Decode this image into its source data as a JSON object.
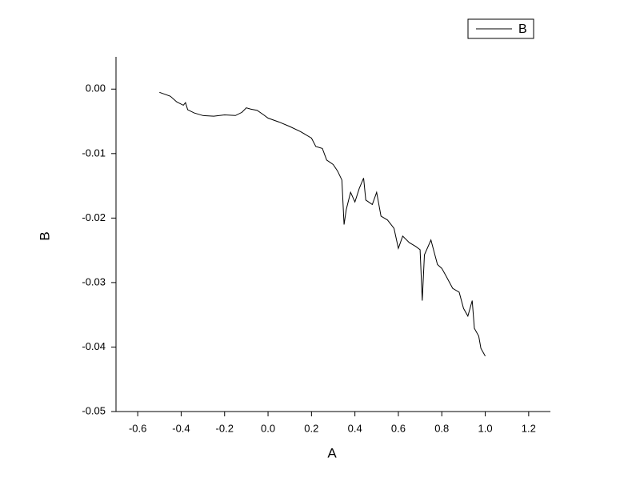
{
  "chart_data": {
    "type": "line",
    "x_label": "A",
    "y_label": "B",
    "x": [
      -0.5,
      -0.45,
      -0.42,
      -0.39,
      -0.38,
      -0.37,
      -0.34,
      -0.3,
      -0.25,
      -0.2,
      -0.15,
      -0.12,
      -0.1,
      -0.08,
      -0.05,
      -0.02,
      0.0,
      0.05,
      0.1,
      0.15,
      0.2,
      0.22,
      0.25,
      0.27,
      0.3,
      0.32,
      0.34,
      0.35,
      0.36,
      0.38,
      0.4,
      0.42,
      0.44,
      0.45,
      0.48,
      0.5,
      0.52,
      0.55,
      0.58,
      0.6,
      0.62,
      0.65,
      0.68,
      0.7,
      0.71,
      0.72,
      0.75,
      0.78,
      0.8,
      0.82,
      0.85,
      0.88,
      0.9,
      0.92,
      0.94,
      0.95,
      0.97,
      0.98,
      1.0
    ],
    "series": [
      {
        "name": "B",
        "color": "#000000",
        "values": [
          -0.0005,
          -0.0011,
          -0.002,
          -0.0025,
          -0.0021,
          -0.0032,
          -0.0037,
          -0.0041,
          -0.0042,
          -0.004,
          -0.0041,
          -0.0036,
          -0.0029,
          -0.0031,
          -0.0033,
          -0.004,
          -0.0045,
          -0.0051,
          -0.0058,
          -0.0066,
          -0.0076,
          -0.0089,
          -0.0092,
          -0.011,
          -0.0117,
          -0.0127,
          -0.0141,
          -0.021,
          -0.0187,
          -0.016,
          -0.0175,
          -0.0154,
          -0.0138,
          -0.0172,
          -0.0179,
          -0.016,
          -0.0197,
          -0.0203,
          -0.0216,
          -0.0247,
          -0.0228,
          -0.0238,
          -0.0244,
          -0.0249,
          -0.0328,
          -0.0257,
          -0.0234,
          -0.0272,
          -0.0278,
          -0.029,
          -0.0309,
          -0.0315,
          -0.034,
          -0.0352,
          -0.0328,
          -0.0371,
          -0.0383,
          -0.0402,
          -0.0414
        ]
      }
    ],
    "xlim": [
      -0.7,
      1.3
    ],
    "ylim": [
      -0.05,
      0.005
    ],
    "xticks": [
      -0.6,
      -0.4,
      -0.2,
      {
        "value": 0,
        "label": "0.0"
      },
      0.2,
      0.4,
      0.6,
      0.8,
      {
        "value": 1,
        "label": "1.0"
      },
      1.2
    ],
    "yticks": [
      -0.05,
      -0.04,
      -0.03,
      -0.02,
      -0.01,
      {
        "value": 0,
        "label": "0.00"
      }
    ],
    "legend": "upper right"
  }
}
